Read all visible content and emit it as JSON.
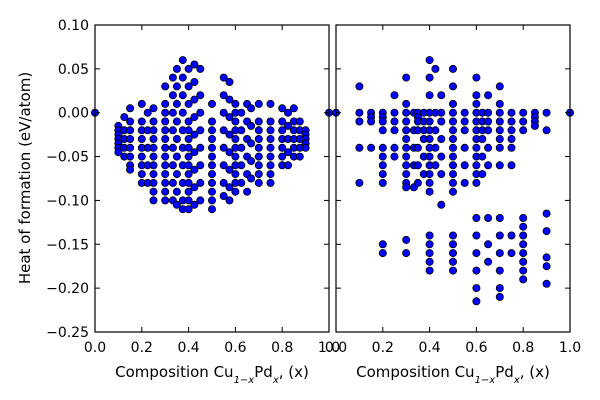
{
  "chart_data": [
    {
      "type": "scatter",
      "title": "",
      "xlabel": "Composition Cu1−xPdx, (x)",
      "ylabel": "Heat of formation (eV/atom)",
      "xlim": [
        0.0,
        1.0
      ],
      "ylim": [
        -0.25,
        0.1
      ],
      "xticks": [
        "0.0",
        "0.2",
        "0.4",
        "0.6",
        "0.8",
        "1.0"
      ],
      "yticks": [
        "0.10",
        "0.05",
        "0.00",
        "−0.05",
        "−0.10",
        "−0.15",
        "−0.20",
        "−0.25"
      ],
      "grid": false,
      "marker_color": "#0000ff",
      "series": [
        {
          "columns": [
            {
              "x": 0.0,
              "y": [
                0.0
              ]
            },
            {
              "x": 0.1,
              "y": [
                -0.015,
                -0.02,
                -0.025,
                -0.03,
                -0.035,
                -0.04,
                -0.045
              ]
            },
            {
              "x": 0.125,
              "y": [
                -0.005,
                -0.02,
                -0.03,
                -0.04,
                -0.05
              ]
            },
            {
              "x": 0.15,
              "y": [
                0.005,
                -0.01,
                -0.02,
                -0.03,
                -0.04,
                -0.05,
                -0.06,
                -0.065
              ]
            },
            {
              "x": 0.2,
              "y": [
                0.01,
                -0.01,
                -0.02,
                -0.03,
                -0.04,
                -0.05,
                -0.06,
                -0.07,
                -0.08
              ]
            },
            {
              "x": 0.225,
              "y": [
                0.0,
                -0.02,
                -0.04,
                -0.06,
                -0.08
              ]
            },
            {
              "x": 0.25,
              "y": [
                0.005,
                -0.01,
                -0.02,
                -0.03,
                -0.04,
                -0.05,
                -0.06,
                -0.07,
                -0.08,
                -0.09,
                -0.1
              ]
            },
            {
              "x": 0.3,
              "y": [
                0.03,
                0.01,
                0.0,
                -0.01,
                -0.02,
                -0.03,
                -0.04,
                -0.05,
                -0.06,
                -0.07,
                -0.08,
                -0.09,
                -0.1
              ]
            },
            {
              "x": 0.333,
              "y": [
                0.04,
                0.02,
                0.0,
                -0.02,
                -0.04,
                -0.06,
                -0.08,
                -0.1
              ]
            },
            {
              "x": 0.35,
              "y": [
                0.05,
                0.03,
                0.01,
                -0.01,
                -0.03,
                -0.05,
                -0.07,
                -0.09,
                -0.105
              ]
            },
            {
              "x": 0.375,
              "y": [
                0.06,
                0.04,
                0.02,
                0.0,
                -0.02,
                -0.04,
                -0.06,
                -0.08,
                -0.1,
                -0.11
              ]
            },
            {
              "x": 0.4,
              "y": [
                0.05,
                0.03,
                0.01,
                -0.01,
                -0.02,
                -0.03,
                -0.04,
                -0.05,
                -0.06,
                -0.07,
                -0.08,
                -0.09,
                -0.1,
                -0.11
              ]
            },
            {
              "x": 0.425,
              "y": [
                0.055,
                0.035,
                0.015,
                -0.005,
                -0.025,
                -0.045,
                -0.065,
                -0.085,
                -0.105
              ]
            },
            {
              "x": 0.45,
              "y": [
                0.05,
                0.02,
                0.0,
                -0.02,
                -0.04,
                -0.06,
                -0.08,
                -0.1
              ]
            },
            {
              "x": 0.5,
              "y": [
                0.01,
                -0.01,
                -0.02,
                -0.03,
                -0.04,
                -0.05,
                -0.06,
                -0.07,
                -0.08,
                -0.09,
                -0.1,
                -0.11
              ]
            },
            {
              "x": 0.55,
              "y": [
                0.04,
                0.02,
                0.0,
                -0.02,
                -0.04,
                -0.06,
                -0.08,
                -0.095
              ]
            },
            {
              "x": 0.575,
              "y": [
                0.035,
                0.015,
                -0.005,
                -0.025,
                -0.045,
                -0.065,
                -0.085,
                -0.1
              ]
            },
            {
              "x": 0.6,
              "y": [
                0.01,
                0.0,
                -0.01,
                -0.02,
                -0.03,
                -0.04,
                -0.05,
                -0.06,
                -0.07,
                -0.08,
                -0.09
              ]
            },
            {
              "x": 0.625,
              "y": [
                0.0,
                -0.02,
                -0.04,
                -0.06,
                -0.08
              ]
            },
            {
              "x": 0.65,
              "y": [
                0.01,
                -0.01,
                -0.03,
                -0.05,
                -0.07,
                -0.09
              ]
            },
            {
              "x": 0.667,
              "y": [
                0.005,
                -0.015,
                -0.035,
                -0.055,
                -0.075
              ]
            },
            {
              "x": 0.7,
              "y": [
                0.01,
                -0.01,
                -0.02,
                -0.03,
                -0.04,
                -0.05,
                -0.06,
                -0.07,
                -0.08
              ]
            },
            {
              "x": 0.75,
              "y": [
                0.01,
                -0.01,
                -0.02,
                -0.03,
                -0.04,
                -0.05,
                -0.06,
                -0.07,
                -0.08
              ]
            },
            {
              "x": 0.8,
              "y": [
                0.005,
                -0.01,
                -0.02,
                -0.03,
                -0.04,
                -0.05,
                -0.06
              ]
            },
            {
              "x": 0.825,
              "y": [
                0.0,
                -0.015,
                -0.03,
                -0.045,
                -0.06
              ]
            },
            {
              "x": 0.85,
              "y": [
                0.005,
                -0.01,
                -0.02,
                -0.03,
                -0.04,
                -0.05
              ]
            },
            {
              "x": 0.875,
              "y": [
                -0.01,
                -0.02,
                -0.03,
                -0.04,
                -0.05
              ]
            },
            {
              "x": 0.9,
              "y": [
                -0.02,
                -0.025,
                -0.03,
                -0.035,
                -0.04
              ]
            },
            {
              "x": 1.0,
              "y": [
                0.0
              ]
            }
          ]
        }
      ]
    },
    {
      "type": "scatter",
      "title": "",
      "xlabel": "Composition Cu1−xPdx, (x)",
      "ylabel": "",
      "xlim": [
        0.0,
        1.0
      ],
      "ylim": [
        -0.25,
        0.1
      ],
      "xticks": [
        "0.0",
        "0.2",
        "0.4",
        "0.6",
        "0.8",
        "1.0"
      ],
      "grid": false,
      "marker_color": "#0000ff",
      "series": [
        {
          "columns": [
            {
              "x": 0.0,
              "y": [
                0.0
              ]
            },
            {
              "x": 0.1,
              "y": [
                0.03,
                0.0,
                -0.01,
                -0.04,
                -0.08
              ]
            },
            {
              "x": 0.15,
              "y": [
                0.0,
                -0.005,
                -0.01,
                -0.04
              ]
            },
            {
              "x": 0.2,
              "y": [
                0.0,
                -0.005,
                -0.01,
                -0.02,
                -0.04,
                -0.05,
                -0.06,
                -0.07,
                -0.08,
                -0.15,
                -0.16
              ]
            },
            {
              "x": 0.25,
              "y": [
                0.02,
                0.0,
                -0.01,
                -0.02,
                -0.04,
                -0.05
              ]
            },
            {
              "x": 0.3,
              "y": [
                0.04,
                0.01,
                0.0,
                -0.01,
                -0.02,
                -0.03,
                -0.04,
                -0.05,
                -0.06,
                -0.07,
                -0.08,
                -0.085,
                -0.145,
                -0.16
              ]
            },
            {
              "x": 0.333,
              "y": [
                0.0,
                -0.02,
                -0.04,
                -0.06,
                -0.085
              ]
            },
            {
              "x": 0.35,
              "y": [
                0.0,
                -0.005,
                -0.01,
                -0.02,
                -0.04,
                -0.06,
                -0.08
              ]
            },
            {
              "x": 0.375,
              "y": [
                0.0,
                -0.01,
                -0.02,
                -0.03,
                -0.05,
                -0.07
              ]
            },
            {
              "x": 0.4,
              "y": [
                0.06,
                0.04,
                0.02,
                0.0,
                -0.01,
                -0.02,
                -0.03,
                -0.04,
                -0.05,
                -0.06,
                -0.07,
                -0.08,
                -0.09,
                -0.14,
                -0.15,
                -0.16,
                -0.17,
                -0.18
              ]
            },
            {
              "x": 0.425,
              "y": [
                0.05,
                0.0,
                -0.02,
                -0.04,
                -0.06
              ]
            },
            {
              "x": 0.45,
              "y": [
                0.02,
                0.0,
                -0.01,
                -0.03,
                -0.05,
                -0.07,
                -0.105
              ]
            },
            {
              "x": 0.5,
              "y": [
                0.05,
                0.03,
                0.01,
                0.0,
                -0.01,
                -0.02,
                -0.03,
                -0.04,
                -0.05,
                -0.06,
                -0.07,
                -0.08,
                -0.09,
                -0.14,
                -0.15,
                -0.16,
                -0.17,
                -0.18
              ]
            },
            {
              "x": 0.55,
              "y": [
                0.0,
                -0.01,
                -0.02,
                -0.04,
                -0.06,
                -0.08
              ]
            },
            {
              "x": 0.6,
              "y": [
                0.04,
                0.02,
                0.01,
                0.0,
                -0.01,
                -0.02,
                -0.03,
                -0.04,
                -0.05,
                -0.06,
                -0.07,
                -0.08,
                -0.12,
                -0.14,
                -0.16,
                -0.18,
                -0.2,
                -0.215
              ]
            },
            {
              "x": 0.625,
              "y": [
                0.0,
                -0.01,
                -0.02,
                -0.03,
                -0.05,
                -0.07
              ]
            },
            {
              "x": 0.65,
              "y": [
                0.02,
                0.0,
                -0.01,
                -0.02,
                -0.04,
                -0.06,
                -0.12,
                -0.15,
                -0.17
              ]
            },
            {
              "x": 0.7,
              "y": [
                0.03,
                0.01,
                0.0,
                -0.01,
                -0.02,
                -0.03,
                -0.04,
                -0.06,
                -0.12,
                -0.14,
                -0.16,
                -0.18,
                -0.2,
                -0.21
              ]
            },
            {
              "x": 0.75,
              "y": [
                0.0,
                -0.01,
                -0.02,
                -0.03,
                -0.04,
                -0.06,
                -0.14,
                -0.16
              ]
            },
            {
              "x": 0.8,
              "y": [
                0.0,
                -0.01,
                -0.02,
                -0.12,
                -0.13,
                -0.14,
                -0.15,
                -0.16,
                -0.17,
                -0.18,
                -0.19
              ]
            },
            {
              "x": 0.85,
              "y": [
                0.0,
                -0.005,
                -0.01,
                -0.015
              ]
            },
            {
              "x": 0.9,
              "y": [
                0.0,
                -0.02,
                -0.115,
                -0.135,
                -0.165,
                -0.175,
                -0.195
              ]
            },
            {
              "x": 1.0,
              "y": [
                0.0
              ]
            }
          ]
        }
      ]
    }
  ]
}
